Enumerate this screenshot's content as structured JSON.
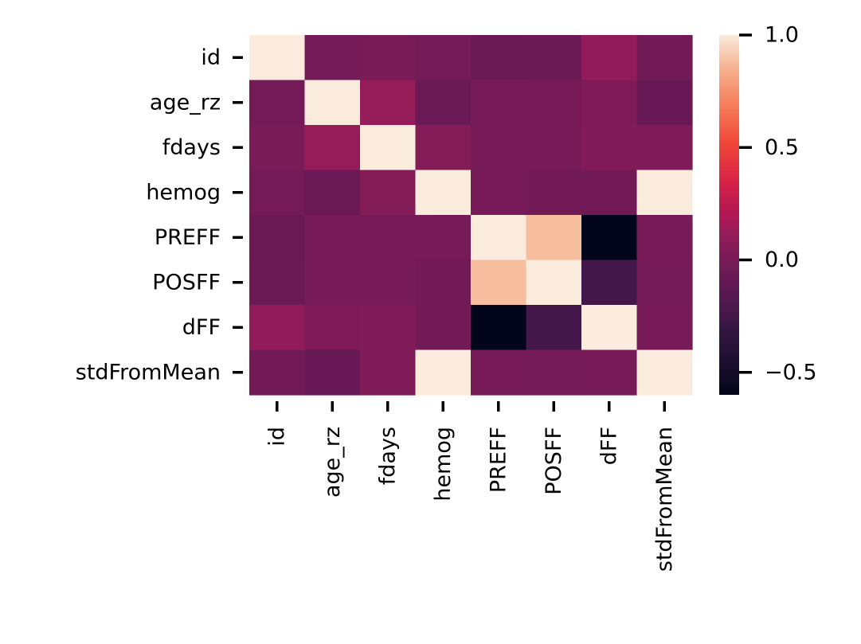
{
  "chart_data": {
    "type": "heatmap",
    "title": "",
    "xlabel": "",
    "ylabel": "",
    "rows": [
      "id",
      "age_rz",
      "fdays",
      "hemog",
      "PREFF",
      "POSFF",
      "dFF",
      "stdFromMean"
    ],
    "cols": [
      "id",
      "age_rz",
      "fdays",
      "hemog",
      "PREFF",
      "POSFF",
      "dFF",
      "stdFromMean"
    ],
    "values": [
      [
        1.0,
        -0.02,
        0.0,
        -0.02,
        -0.07,
        -0.06,
        0.1,
        -0.03
      ],
      [
        -0.02,
        1.0,
        0.12,
        -0.07,
        -0.01,
        -0.01,
        0.03,
        -0.08
      ],
      [
        0.0,
        0.12,
        1.0,
        0.05,
        -0.01,
        -0.01,
        0.04,
        0.03
      ],
      [
        -0.02,
        -0.07,
        0.05,
        1.0,
        -0.01,
        -0.03,
        -0.03,
        1.0
      ],
      [
        -0.07,
        -0.01,
        -0.01,
        -0.01,
        1.0,
        0.88,
        -0.6,
        -0.01
      ],
      [
        -0.06,
        -0.01,
        -0.01,
        -0.03,
        0.88,
        1.0,
        -0.25,
        -0.02
      ],
      [
        0.1,
        0.03,
        0.04,
        -0.03,
        -0.6,
        -0.25,
        1.0,
        -0.01
      ],
      [
        -0.03,
        -0.08,
        0.03,
        1.0,
        -0.01,
        -0.02,
        -0.01,
        1.0
      ]
    ],
    "colormap": "rocket",
    "vmin": -0.6,
    "vmax": 1.0,
    "colorbar": {
      "ticks": [
        1.0,
        0.5,
        0.0,
        -0.5
      ],
      "tick_labels": [
        "1.0",
        "0.5",
        "0.0",
        "−0.5"
      ]
    }
  }
}
